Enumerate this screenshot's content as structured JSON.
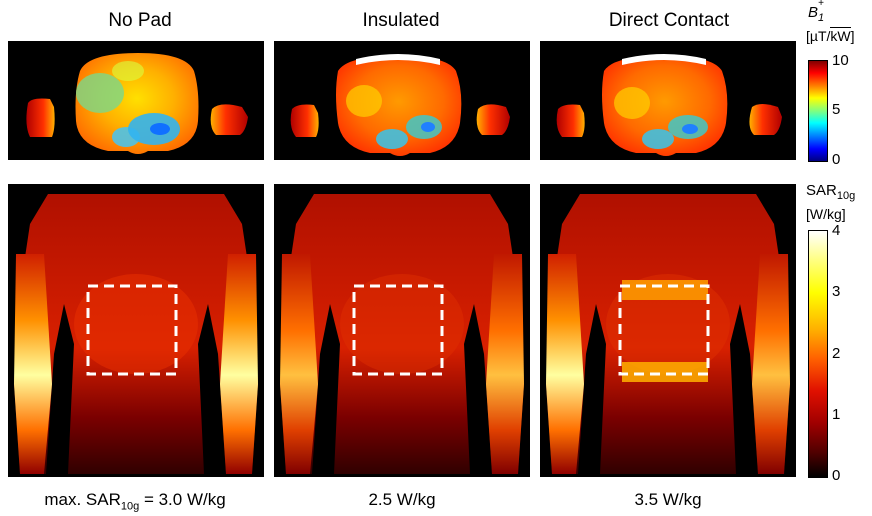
{
  "columns": [
    {
      "title": "No Pad",
      "footer_prefix": "max. SAR",
      "footer_sub": "10g",
      "footer_value": " = 3.0 W/kg"
    },
    {
      "title": "Insulated",
      "footer_value": "2.5 W/kg"
    },
    {
      "title": "Direct Contact",
      "footer_value": "3.5 W/kg"
    }
  ],
  "b1_colorbar": {
    "label_main": "B",
    "label_sub": "1",
    "label_sup": "+",
    "units_left": "[µT/",
    "units_sqrt": "kW",
    "units_right": "]",
    "ticks": [
      "10",
      "5",
      "0"
    ],
    "colormap": "jet",
    "range": [
      0,
      10
    ]
  },
  "sar_colorbar": {
    "label_main": "SAR",
    "label_sub": "10g",
    "units": "[W/kg]",
    "ticks": [
      "4",
      "3",
      "2",
      "1",
      "0"
    ],
    "colormap": "hot",
    "range": [
      0,
      4
    ]
  },
  "colors": {
    "background": "#000000",
    "dashed_box": "#ffffff",
    "pad": "#ffffff"
  }
}
